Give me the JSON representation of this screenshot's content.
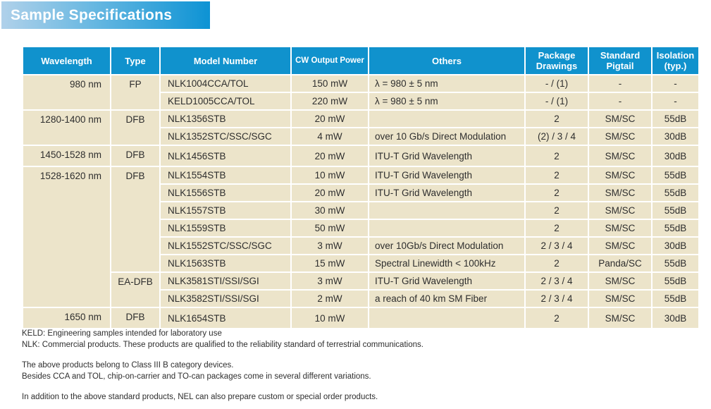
{
  "title": "Sample Specifications",
  "colors": {
    "header_blue": "#1092cd",
    "banner_gradient_start": "#b0d1ea",
    "banner_gradient_end": "#0d93d4",
    "cell_beige": "#ece4ca",
    "text": "#2e2e2e"
  },
  "table": {
    "columns": [
      "Wavelength",
      "Type",
      "Model Number",
      "CW Output Power",
      "Others",
      "Package Drawings",
      "Standard Pigtail",
      "Isolation (typ.)"
    ],
    "rows": [
      {
        "wavelength": "980 nm",
        "type": "FP",
        "model": "NLK1004CCA/TOL",
        "power": "150 mW",
        "others": "λ = 980 ± 5 nm",
        "package": "- / (1)",
        "pigtail": "-",
        "isolation": "-"
      },
      {
        "model": "KELD1005CCA/TOL",
        "power": "220 mW",
        "others": "λ = 980 ± 5 nm",
        "package": "- / (1)",
        "pigtail": "-",
        "isolation": "-"
      },
      {
        "wavelength": "1280-1400 nm",
        "type": "DFB",
        "model": "NLK1356STB",
        "power": "20 mW",
        "others": "",
        "package": "2",
        "pigtail": "SM/SC",
        "isolation": "55dB"
      },
      {
        "model": "NLK1352STC/SSC/SGC",
        "power": "4 mW",
        "others": "over 10 Gb/s Direct Modulation",
        "package": "(2) / 3 / 4",
        "pigtail": "SM/SC",
        "isolation": "30dB"
      },
      {
        "wavelength": "1450-1528 nm",
        "type": "DFB",
        "model": "NLK1456STB",
        "power": "20 mW",
        "others": "ITU-T Grid Wavelength",
        "package": "2",
        "pigtail": "SM/SC",
        "isolation": "30dB"
      },
      {
        "wavelength": "1528-1620 nm",
        "type": "DFB",
        "model": "NLK1554STB",
        "power": "10 mW",
        "others": "ITU-T Grid Wavelength",
        "package": "2",
        "pigtail": "SM/SC",
        "isolation": "55dB"
      },
      {
        "model": "NLK1556STB",
        "power": "20 mW",
        "others": "ITU-T Grid Wavelength",
        "package": "2",
        "pigtail": "SM/SC",
        "isolation": "55dB"
      },
      {
        "model": "NLK1557STB",
        "power": "30 mW",
        "others": "",
        "package": "2",
        "pigtail": "SM/SC",
        "isolation": "55dB"
      },
      {
        "model": "NLK1559STB",
        "power": "50 mW",
        "others": "",
        "package": "2",
        "pigtail": "SM/SC",
        "isolation": "55dB"
      },
      {
        "model": "NLK1552STC/SSC/SGC",
        "power": "3 mW",
        "others": "over 10Gb/s Direct Modulation",
        "package": "2 / 3 / 4",
        "pigtail": "SM/SC",
        "isolation": "30dB"
      },
      {
        "model": "NLK1563STB",
        "power": "15 mW",
        "others": "Spectral Linewidth < 100kHz",
        "package": "2",
        "pigtail": "Panda/SC",
        "isolation": "55dB"
      },
      {
        "type": "EA-DFB",
        "model": "NLK3581STI/SSI/SGI",
        "power": "3 mW",
        "others": "ITU-T Grid Wavelength",
        "package": "2 / 3 / 4",
        "pigtail": "SM/SC",
        "isolation": "55dB"
      },
      {
        "model": "NLK3582STI/SSI/SGI",
        "power": "2 mW",
        "others": "a reach of 40 km SM Fiber",
        "package": "2 / 3 / 4",
        "pigtail": "SM/SC",
        "isolation": "55dB"
      },
      {
        "wavelength": "1650 nm",
        "type": "DFB",
        "model": "NLK1654STB",
        "power": "10 mW",
        "others": "",
        "package": "2",
        "pigtail": "SM/SC",
        "isolation": "30dB"
      }
    ]
  },
  "notes": [
    "KELD: Engineering samples intended for laboratory use",
    "NLK: Commercial products. These products are qualified to the reliability standard of terrestrial communications.",
    "The above products belong to Class III B category devices.",
    "Besides CCA and TOL, chip-on-carrier and TO-can packages come in several different variations.",
    "In addition to the above standard products, NEL can also prepare custom or special order products."
  ]
}
